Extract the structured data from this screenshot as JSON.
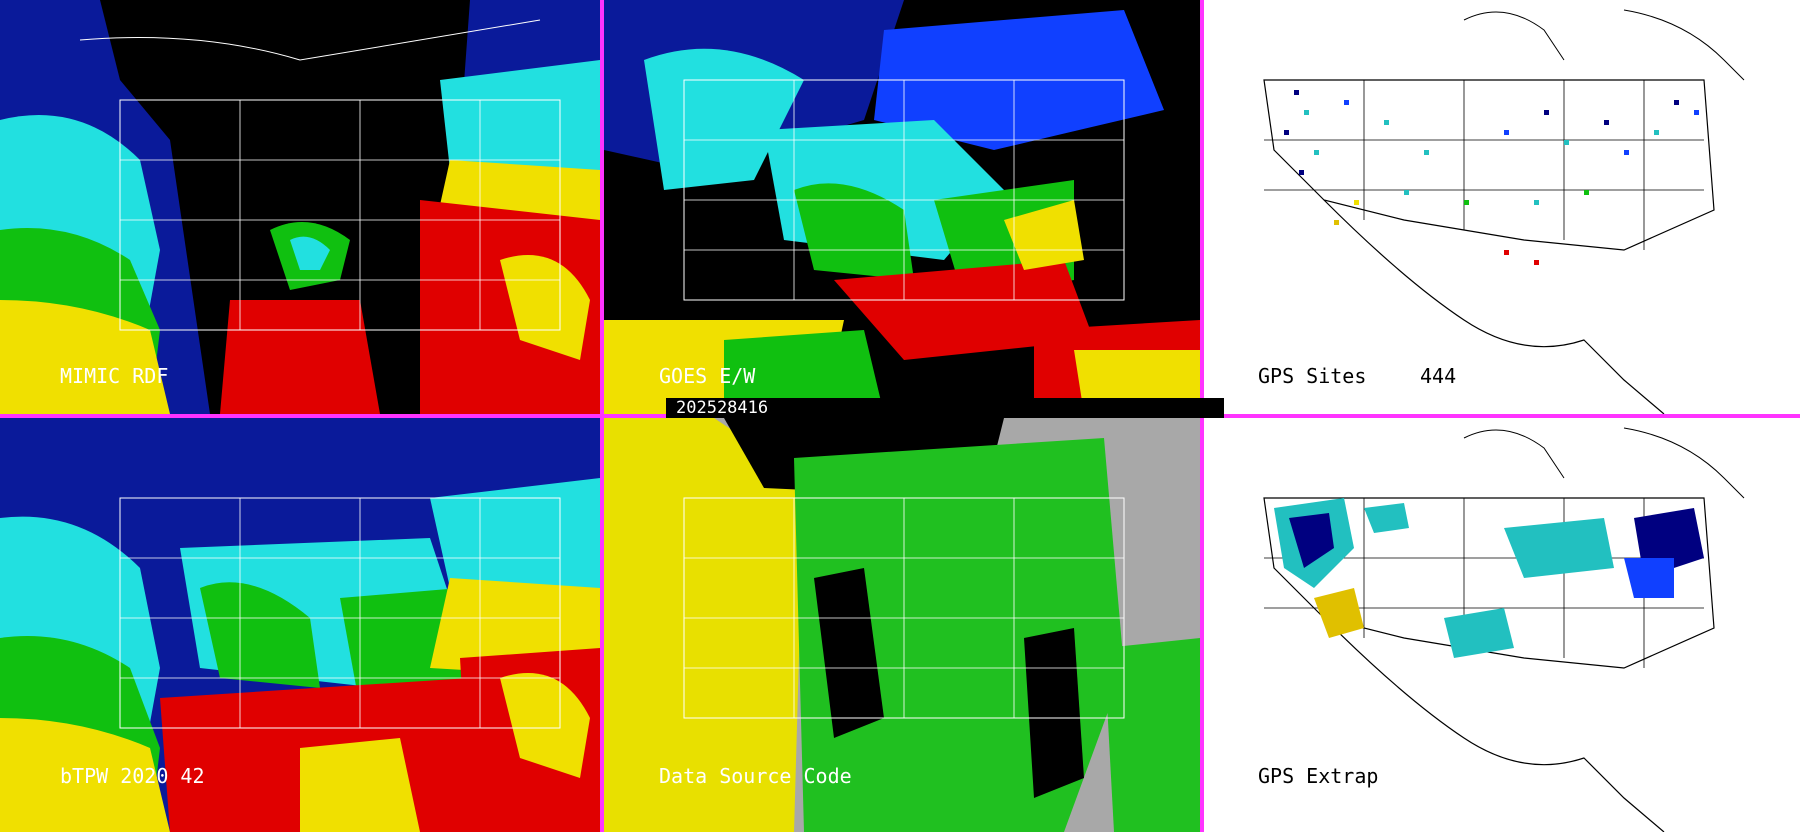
{
  "timestamp": "202528416",
  "panels": [
    {
      "id": "mimic",
      "label": "MIMIC RDF"
    },
    {
      "id": "goes",
      "label": "GOES E/W"
    },
    {
      "id": "gps-sites",
      "label": "GPS Sites",
      "count": "444"
    },
    {
      "id": "btpw",
      "label": "bTPW 2020 42"
    },
    {
      "id": "data-source",
      "label": "Data Source Code"
    },
    {
      "id": "gps-extrap",
      "label": "GPS Extrap"
    }
  ],
  "colors": {
    "divider": "#ff33ff",
    "moisture_dry": "#000080",
    "moisture_low": "#1040ff",
    "moisture_mid": "#22e0e0",
    "moisture_mid2": "#10c010",
    "moisture_high": "#f0e000",
    "moisture_very_high": "#e00000",
    "source_yellow": "#e8e000",
    "source_green": "#20c020",
    "source_gray": "#a8a8a8"
  }
}
